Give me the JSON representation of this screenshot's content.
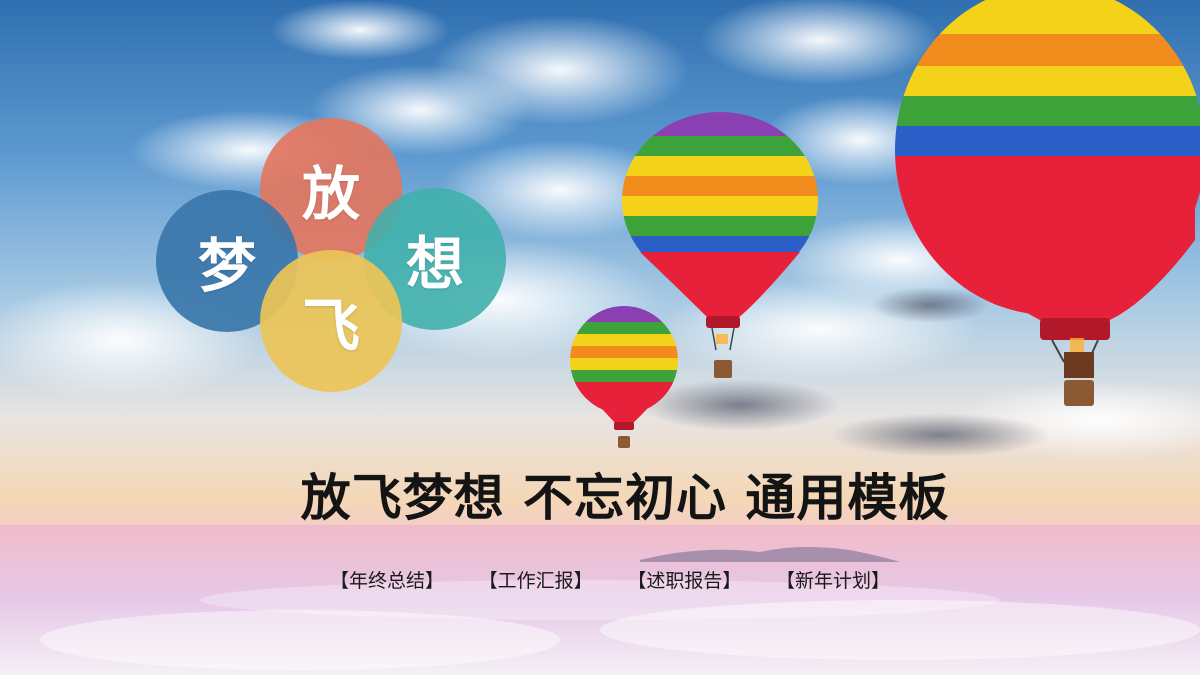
{
  "badge": {
    "chars": [
      "放",
      "梦",
      "想",
      "飞"
    ],
    "colors": [
      "#e27660",
      "#3a76aa",
      "#40b0ac",
      "#ecc456"
    ]
  },
  "title": "放飞梦想 不忘初心 通用模板",
  "tags": [
    "【年终总结】",
    "【工作汇报】",
    "【述职报告】",
    "【新年计划】"
  ],
  "balloon_colors": [
    "#e8213a",
    "#f28c1c",
    "#f5d21a",
    "#3ea23a",
    "#2b5fc7",
    "#8a3fb3"
  ]
}
